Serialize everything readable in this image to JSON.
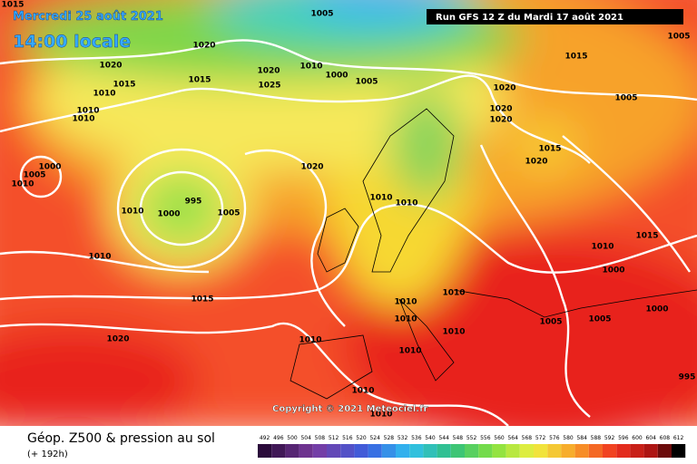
{
  "header": {
    "date": "Mercredi 25 août 2021",
    "time": "14:00 locale",
    "run": "Run GFS 12 Z du Mardi 17 août 2021"
  },
  "copyright": "Copyright © 2021 Meteociel.fr",
  "footer": {
    "title": "Géop. Z500 & pression au sol",
    "lead": "(+ 192h)"
  },
  "scale": {
    "labels": [
      492,
      496,
      500,
      504,
      508,
      512,
      516,
      520,
      524,
      528,
      532,
      536,
      540,
      544,
      548,
      552,
      556,
      560,
      564,
      568,
      572,
      576,
      580,
      584,
      588,
      592,
      596,
      600,
      604,
      608,
      612
    ]
  },
  "isobars": [
    1015,
    1005,
    1005,
    1020,
    1020,
    1010,
    1015,
    1015,
    1020,
    1025,
    1010,
    1000,
    1005,
    1015,
    1020,
    1005,
    1020,
    1020,
    1010,
    1010,
    1020,
    1015,
    1020,
    1000,
    1005,
    1010,
    995,
    1000,
    1010,
    1005,
    1010,
    1010,
    1015,
    1010,
    1000,
    1010,
    1015,
    1010,
    1010,
    1010,
    1005,
    1005,
    1000,
    1020,
    1010,
    1010,
    1010,
    995,
    1010,
    1010
  ]
}
